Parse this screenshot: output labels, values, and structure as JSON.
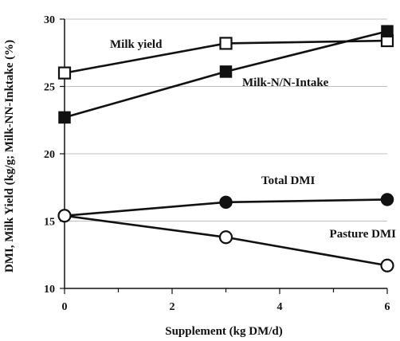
{
  "chart_data": {
    "type": "line",
    "xlabel": "Supplement (kg DM/d)",
    "ylabel": "DMI, Milk Yield (kg/g; Milk-NN-Inktake (%)",
    "xlim": [
      0,
      6
    ],
    "ylim": [
      10,
      30
    ],
    "x_ticks": [
      0,
      2,
      4,
      6
    ],
    "y_ticks": [
      10,
      15,
      20,
      25,
      30
    ],
    "grid": "horizontal",
    "legend": "none",
    "series": [
      {
        "name": "Milk yield",
        "x": [
          0,
          3,
          6
        ],
        "y": [
          26.0,
          28.2,
          28.4
        ],
        "marker": "open-square"
      },
      {
        "name": "Milk-N/N-Intake",
        "x": [
          0,
          3,
          6
        ],
        "y": [
          22.7,
          26.1,
          29.1
        ],
        "marker": "filled-square"
      },
      {
        "name": "Total DMI",
        "x": [
          0,
          3,
          6
        ],
        "y": [
          15.4,
          16.4,
          16.6
        ],
        "marker": "filled-circle"
      },
      {
        "name": "Pasture DMI",
        "x": [
          0,
          3,
          6
        ],
        "y": [
          15.4,
          13.8,
          11.7
        ],
        "marker": "open-circle"
      }
    ]
  }
}
